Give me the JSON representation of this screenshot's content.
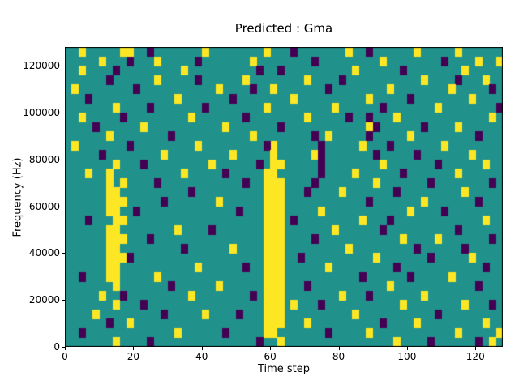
{
  "figure": {
    "background": "#ffffff"
  },
  "chart_data": {
    "type": "heatmap",
    "title": "Predicted : Gma",
    "xlabel": "Time step",
    "ylabel": "Frequency (Hz)",
    "x_range": [
      0,
      128
    ],
    "y_range": [
      0,
      128000
    ],
    "x_ticks": [
      0,
      20,
      40,
      60,
      80,
      100,
      120
    ],
    "y_ticks": [
      0,
      20000,
      40000,
      60000,
      80000,
      100000,
      120000
    ],
    "grid": false,
    "legend": "none",
    "colors": {
      "mid": "#21918c",
      "high": "#fde725",
      "low": "#440154",
      "axis": "#000000"
    },
    "cell_grid": {
      "cols": 64,
      "rows": 32,
      "time_per_col": 2,
      "hz_per_row": 4000,
      "row_order": "top_to_bottom"
    },
    "rows": [
      {
        "high": [
          2,
          8,
          9,
          20,
          29,
          41,
          51,
          57
        ],
        "low": [
          12,
          33,
          44
        ]
      },
      {
        "high": [
          5,
          13,
          27,
          46,
          60,
          63
        ],
        "low": [
          9,
          19,
          36,
          55
        ]
      },
      {
        "high": [
          2,
          17,
          42,
          58
        ],
        "low": [
          7,
          28,
          31,
          49
        ]
      },
      {
        "high": [
          13,
          26,
          35,
          52,
          61
        ],
        "low": [
          6,
          19,
          40,
          57
        ]
      },
      {
        "high": [
          1,
          22,
          30,
          47,
          56
        ],
        "low": [
          10,
          27,
          38,
          62
        ]
      },
      {
        "high": [
          16,
          33,
          44,
          59
        ],
        "low": [
          3,
          24,
          50
        ]
      },
      {
        "high": [
          7,
          29,
          39,
          54
        ],
        "low": [
          12,
          20,
          46,
          63
        ]
      },
      {
        "high": [
          2,
          18,
          35,
          48,
          62
        ],
        "low": [
          8,
          26,
          41,
          44
        ]
      },
      {
        "high": [
          11,
          23,
          44,
          57
        ],
        "low": [
          4,
          31,
          45,
          52
        ]
      },
      {
        "high": [
          6,
          27,
          38,
          50
        ],
        "low": [
          15,
          36,
          44,
          60
        ]
      },
      {
        "high": [
          1,
          19,
          30,
          43,
          55
        ],
        "low": [
          9,
          29,
          37,
          47
        ]
      },
      {
        "high": [
          14,
          24,
          30,
          36,
          59
        ],
        "low": [
          5,
          37,
          45,
          51
        ]
      },
      {
        "high": [
          7,
          21,
          30,
          31,
          46,
          61
        ],
        "low": [
          11,
          28,
          37,
          54
        ]
      },
      {
        "high": [
          3,
          6,
          17,
          29,
          30,
          42,
          57
        ],
        "low": [
          23,
          37,
          49
        ]
      },
      {
        "high": [
          6,
          8,
          29,
          30,
          31,
          45
        ],
        "low": [
          13,
          26,
          36,
          53,
          62
        ]
      },
      {
        "high": [
          6,
          7,
          29,
          30,
          31,
          40,
          58
        ],
        "low": [
          18,
          35,
          48
        ]
      },
      {
        "high": [
          6,
          7,
          8,
          22,
          29,
          30,
          31,
          52
        ],
        "low": [
          14,
          44,
          60
        ]
      },
      {
        "high": [
          6,
          7,
          29,
          30,
          31,
          37,
          50
        ],
        "low": [
          10,
          25,
          55
        ]
      },
      {
        "high": [
          7,
          8,
          29,
          30,
          31,
          43,
          61
        ],
        "low": [
          3,
          33,
          47
        ]
      },
      {
        "high": [
          6,
          7,
          16,
          29,
          30,
          31,
          39
        ],
        "low": [
          21,
          46,
          57
        ]
      },
      {
        "high": [
          6,
          7,
          8,
          29,
          30,
          31,
          49,
          54
        ],
        "low": [
          12,
          36,
          62
        ]
      },
      {
        "high": [
          6,
          7,
          24,
          29,
          30,
          31,
          41
        ],
        "low": [
          17,
          51,
          58
        ]
      },
      {
        "high": [
          6,
          7,
          8,
          29,
          30,
          31,
          45,
          59
        ],
        "low": [
          9,
          34,
          53
        ]
      },
      {
        "high": [
          6,
          7,
          19,
          29,
          30,
          31,
          38
        ],
        "low": [
          26,
          48,
          61
        ]
      },
      {
        "high": [
          6,
          7,
          13,
          29,
          30,
          31,
          56
        ],
        "low": [
          2,
          43,
          50
        ]
      },
      {
        "high": [
          7,
          22,
          29,
          30,
          31,
          47
        ],
        "low": [
          15,
          35,
          60
        ]
      },
      {
        "high": [
          5,
          18,
          29,
          30,
          31,
          40,
          52
        ],
        "low": [
          8,
          27,
          44
        ]
      },
      {
        "high": [
          7,
          29,
          30,
          31,
          33,
          49,
          58
        ],
        "low": [
          11,
          37,
          62
        ]
      },
      {
        "high": [
          4,
          20,
          29,
          30,
          31,
          42
        ],
        "low": [
          14,
          25,
          54
        ]
      },
      {
        "high": [
          9,
          29,
          30,
          31,
          35,
          51,
          61
        ],
        "low": [
          6,
          46
        ]
      },
      {
        "high": [
          16,
          29,
          30,
          44,
          57,
          63
        ],
        "low": [
          2,
          23,
          38
        ]
      },
      {
        "high": [
          7,
          31,
          48,
          62
        ],
        "low": [
          12,
          28,
          53,
          60
        ]
      }
    ]
  }
}
